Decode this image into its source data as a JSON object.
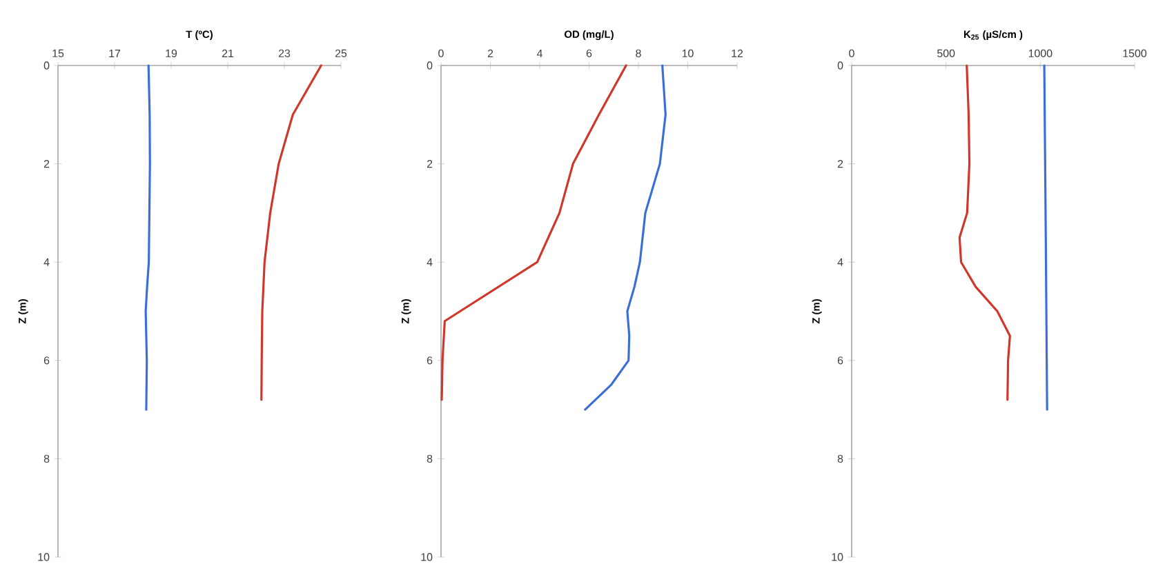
{
  "chart_data": [
    {
      "type": "line",
      "xlabel": "T (ºC)",
      "ylabel": "Z (m)",
      "xlim": [
        15,
        25
      ],
      "xticks": [
        15,
        17,
        19,
        21,
        23,
        25
      ],
      "ylim": [
        10,
        0
      ],
      "yticks": [
        0,
        2,
        4,
        6,
        8,
        10
      ],
      "series": [
        {
          "color": "#3a6fd8",
          "x": [
            18.2,
            18.24,
            18.25,
            18.23,
            18.21,
            18.15,
            18.1,
            18.14,
            18.12
          ],
          "values": [
            0,
            1,
            2,
            3,
            4,
            4.5,
            5,
            6,
            7
          ]
        },
        {
          "color": "#d0362a",
          "x": [
            24.3,
            23.3,
            22.8,
            22.5,
            22.3,
            22.22,
            22.2,
            22.19
          ],
          "values": [
            0,
            1,
            2,
            3,
            4,
            5,
            6,
            6.8
          ]
        }
      ]
    },
    {
      "type": "line",
      "xlabel": "OD (mg/L)",
      "ylabel": "Z (m)",
      "xlim": [
        0,
        12
      ],
      "xticks": [
        0,
        2,
        4,
        6,
        8,
        10,
        12
      ],
      "ylim": [
        10,
        0
      ],
      "yticks": [
        0,
        2,
        4,
        6,
        8,
        10
      ],
      "series": [
        {
          "color": "#3a6fd8",
          "x": [
            8.97,
            9.1,
            8.87,
            8.28,
            8.06,
            7.84,
            7.55,
            7.63,
            7.6,
            6.89,
            5.84
          ],
          "values": [
            0,
            1,
            2,
            3,
            4,
            4.5,
            5,
            5.5,
            6,
            6.5,
            7
          ]
        },
        {
          "color": "#d0362a",
          "x": [
            7.5,
            6.4,
            5.35,
            4.8,
            3.9,
            0.15,
            0.06,
            0.03
          ],
          "values": [
            0,
            1,
            2,
            3,
            4,
            5.2,
            6,
            6.8
          ]
        }
      ]
    },
    {
      "type": "line",
      "xlabel": "K$_{25}$ (µS/cm )",
      "ylabel": "Z (m)",
      "xlim": [
        0,
        1500
      ],
      "xticks": [
        0,
        500,
        1000,
        1500
      ],
      "ylim": [
        10,
        0
      ],
      "yticks": [
        0,
        2,
        4,
        6,
        8,
        10
      ],
      "series": [
        {
          "color": "#3a6fd8",
          "x": [
            1021,
            1029,
            1036
          ],
          "values": [
            0,
            3.5,
            7
          ]
        },
        {
          "color": "#d0362a",
          "x": [
            610,
            620,
            624,
            612,
            572,
            580,
            657,
            772,
            839,
            829,
            826
          ],
          "values": [
            0,
            1,
            2,
            3,
            3.5,
            4,
            4.5,
            5,
            5.5,
            6,
            6.8
          ]
        }
      ]
    }
  ]
}
